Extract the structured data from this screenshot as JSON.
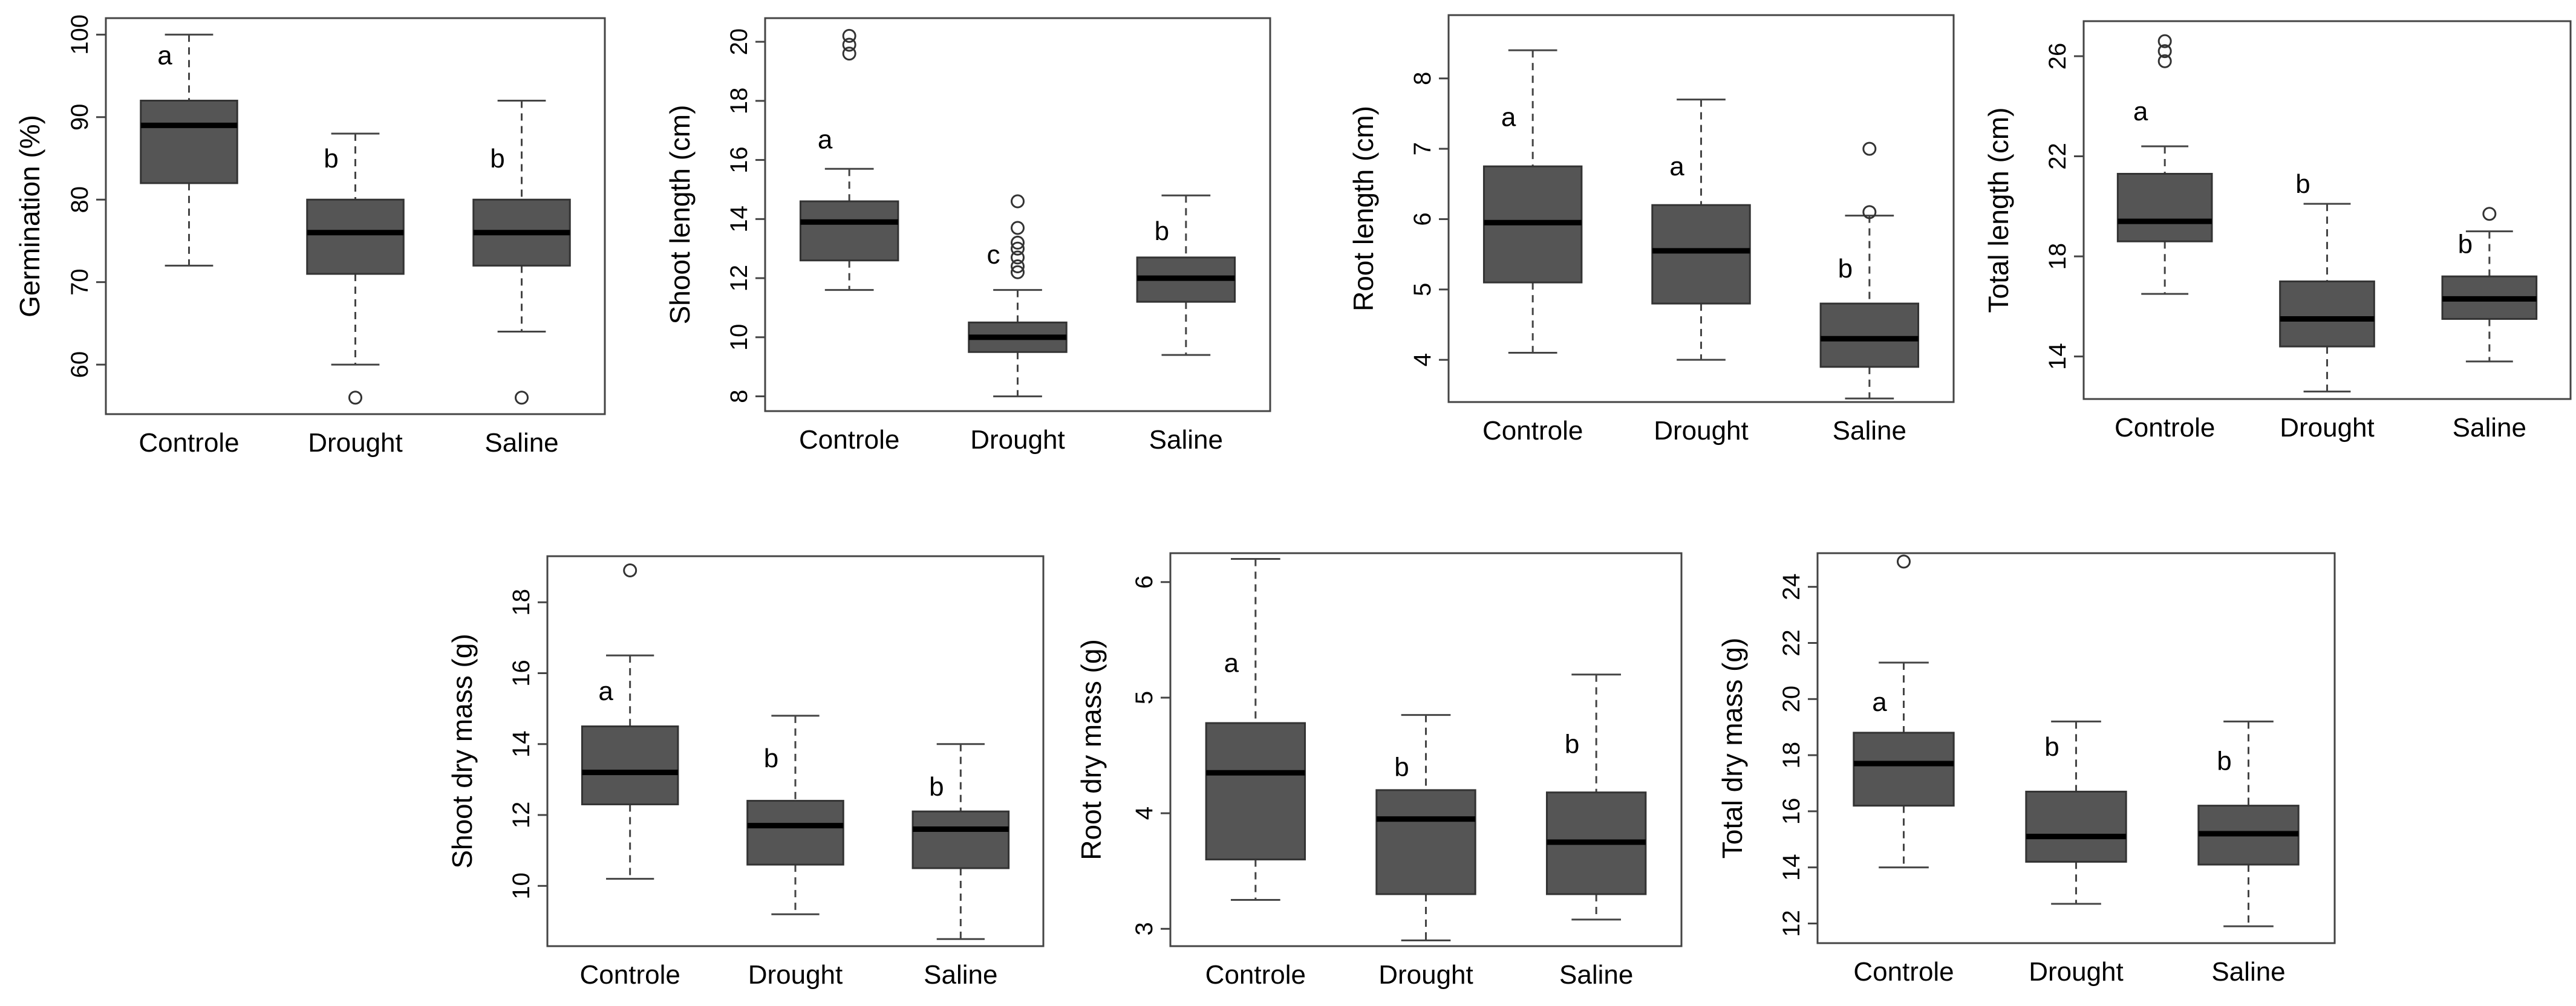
{
  "colors": {
    "box_fill": "#555555",
    "median": "#000000",
    "axis": "#444444",
    "whisker": "#444444"
  },
  "chart_data": [
    {
      "type": "box",
      "ylabel": "Germination (%)",
      "ylim": [
        54,
        102
      ],
      "yticks": [
        60,
        70,
        80,
        90,
        100
      ],
      "categories": [
        "Controle",
        "Drought",
        "Saline"
      ],
      "boxes": [
        {
          "min": 72,
          "q1": 82,
          "median": 89,
          "q3": 92,
          "max": 100,
          "outliers": []
        },
        {
          "min": 60,
          "q1": 71,
          "median": 76,
          "q3": 80,
          "max": 88,
          "outliers": [
            56
          ]
        },
        {
          "min": 64,
          "q1": 72,
          "median": 76,
          "q3": 80,
          "max": 92,
          "outliers": [
            56
          ]
        }
      ],
      "letters": [
        {
          "text": "a",
          "y": 97.5
        },
        {
          "text": "b",
          "y": 85
        },
        {
          "text": "b",
          "y": 85
        }
      ]
    },
    {
      "type": "box",
      "ylabel": "Shoot length (cm)",
      "ylim": [
        7.5,
        20.8
      ],
      "yticks": [
        8,
        10,
        12,
        14,
        16,
        18,
        20
      ],
      "categories": [
        "Controle",
        "Drought",
        "Saline"
      ],
      "boxes": [
        {
          "min": 11.6,
          "q1": 12.6,
          "median": 13.9,
          "q3": 14.6,
          "max": 15.7,
          "outliers": [
            19.6,
            19.9,
            20.2
          ]
        },
        {
          "min": 8.0,
          "q1": 9.5,
          "median": 10.0,
          "q3": 10.5,
          "max": 11.6,
          "outliers": [
            12.2,
            12.4,
            12.7,
            13.0,
            13.2,
            13.7,
            14.6
          ]
        },
        {
          "min": 9.4,
          "q1": 11.2,
          "median": 12.0,
          "q3": 12.7,
          "max": 14.8,
          "outliers": []
        }
      ],
      "letters": [
        {
          "text": "a",
          "y": 16.7
        },
        {
          "text": "c",
          "y": 12.8
        },
        {
          "text": "b",
          "y": 13.6
        }
      ]
    },
    {
      "type": "box",
      "ylabel": "Root length (cm)",
      "ylim": [
        3.4,
        8.9
      ],
      "yticks": [
        4,
        5,
        6,
        7,
        8
      ],
      "categories": [
        "Controle",
        "Drought",
        "Saline"
      ],
      "boxes": [
        {
          "min": 4.1,
          "q1": 5.1,
          "median": 5.95,
          "q3": 6.75,
          "max": 8.4,
          "outliers": []
        },
        {
          "min": 4.0,
          "q1": 4.8,
          "median": 5.55,
          "q3": 6.2,
          "max": 7.7,
          "outliers": []
        },
        {
          "min": 3.45,
          "q1": 3.9,
          "median": 4.3,
          "q3": 4.8,
          "max": 6.05,
          "outliers": [
            6.1,
            7.0
          ]
        }
      ],
      "letters": [
        {
          "text": "a",
          "y": 7.45
        },
        {
          "text": "a",
          "y": 6.75
        },
        {
          "text": "b",
          "y": 5.3
        }
      ]
    },
    {
      "type": "box",
      "ylabel": "Total length (cm)",
      "ylim": [
        12.3,
        27.4
      ],
      "yticks": [
        14,
        18,
        22,
        26
      ],
      "categories": [
        "Controle",
        "Drought",
        "Saline"
      ],
      "boxes": [
        {
          "min": 16.5,
          "q1": 18.6,
          "median": 19.4,
          "q3": 21.3,
          "max": 22.4,
          "outliers": [
            25.8,
            26.2,
            26.6
          ]
        },
        {
          "min": 12.6,
          "q1": 14.4,
          "median": 15.5,
          "q3": 17.0,
          "max": 20.1,
          "outliers": []
        },
        {
          "min": 13.8,
          "q1": 15.5,
          "median": 16.3,
          "q3": 17.2,
          "max": 19.0,
          "outliers": [
            19.7
          ]
        }
      ],
      "letters": [
        {
          "text": "a",
          "y": 23.8
        },
        {
          "text": "b",
          "y": 20.9
        },
        {
          "text": "b",
          "y": 18.5
        }
      ]
    },
    {
      "type": "box",
      "ylabel": "Shoot dry mass (g)",
      "ylim": [
        8.3,
        19.3
      ],
      "yticks": [
        10,
        12,
        14,
        16,
        18
      ],
      "categories": [
        "Controle",
        "Drought",
        "Saline"
      ],
      "boxes": [
        {
          "min": 10.2,
          "q1": 12.3,
          "median": 13.2,
          "q3": 14.5,
          "max": 16.5,
          "outliers": [
            18.9
          ]
        },
        {
          "min": 9.2,
          "q1": 10.6,
          "median": 11.7,
          "q3": 12.4,
          "max": 14.8,
          "outliers": []
        },
        {
          "min": 8.5,
          "q1": 10.5,
          "median": 11.6,
          "q3": 12.1,
          "max": 14.0,
          "outliers": []
        }
      ],
      "letters": [
        {
          "text": "a",
          "y": 15.5
        },
        {
          "text": "b",
          "y": 13.6
        },
        {
          "text": "b",
          "y": 12.8
        }
      ]
    },
    {
      "type": "box",
      "ylabel": "Root dry mass (g)",
      "ylim": [
        2.85,
        6.25
      ],
      "yticks": [
        3.0,
        4.0,
        5.0,
        6.0
      ],
      "categories": [
        "Controle",
        "Drought",
        "Saline"
      ],
      "boxes": [
        {
          "min": 3.25,
          "q1": 3.6,
          "median": 4.35,
          "q3": 4.78,
          "max": 6.2,
          "outliers": []
        },
        {
          "min": 2.9,
          "q1": 3.3,
          "median": 3.95,
          "q3": 4.2,
          "max": 4.85,
          "outliers": []
        },
        {
          "min": 3.08,
          "q1": 3.3,
          "median": 3.75,
          "q3": 4.18,
          "max": 5.2,
          "outliers": []
        }
      ],
      "letters": [
        {
          "text": "a",
          "y": 5.3
        },
        {
          "text": "b",
          "y": 4.4
        },
        {
          "text": "b",
          "y": 4.6
        }
      ]
    },
    {
      "type": "box",
      "ylabel": "Total dry mass (g)",
      "ylim": [
        11.3,
        25.2
      ],
      "yticks": [
        12,
        14,
        16,
        18,
        20,
        22,
        24
      ],
      "categories": [
        "Controle",
        "Drought",
        "Saline"
      ],
      "boxes": [
        {
          "min": 14.0,
          "q1": 16.2,
          "median": 17.7,
          "q3": 18.8,
          "max": 21.3,
          "outliers": [
            24.9
          ]
        },
        {
          "min": 12.7,
          "q1": 14.2,
          "median": 15.1,
          "q3": 16.7,
          "max": 19.2,
          "outliers": []
        },
        {
          "min": 11.9,
          "q1": 14.1,
          "median": 15.2,
          "q3": 16.2,
          "max": 19.2,
          "outliers": []
        }
      ],
      "letters": [
        {
          "text": "a",
          "y": 19.9
        },
        {
          "text": "b",
          "y": 18.3
        },
        {
          "text": "b",
          "y": 17.8
        }
      ]
    }
  ]
}
